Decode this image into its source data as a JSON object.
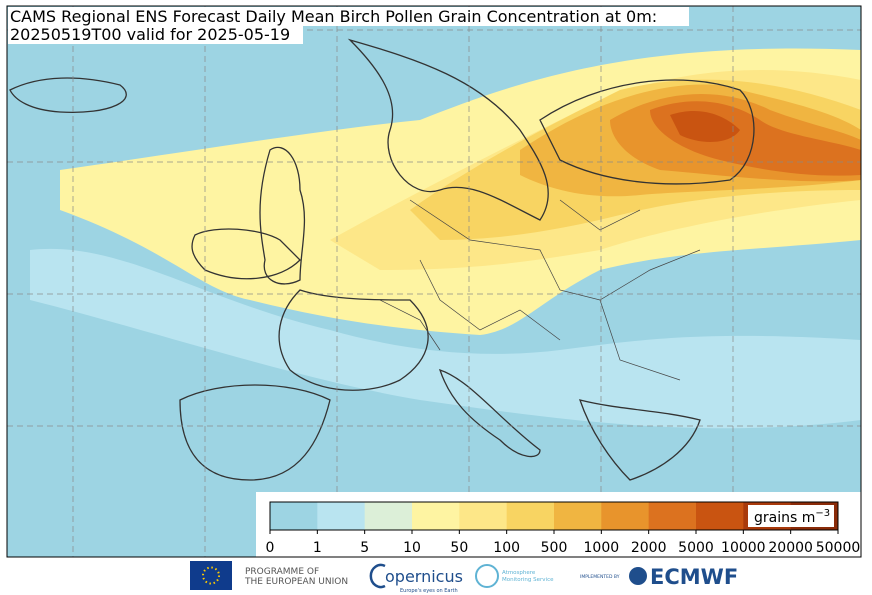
{
  "header": {
    "title": "CAMS Regional ENS Forecast Daily Mean Birch Pollen Grain Concentration at 0m:",
    "subtitle": "20250519T00 valid for 2025-05-19"
  },
  "colorbar": {
    "ticks": [
      0,
      1,
      5,
      10,
      50,
      100,
      500,
      1000,
      2000,
      5000,
      10000,
      20000,
      50000
    ],
    "colors": [
      "#9dd4e3",
      "#b9e4f0",
      "#dcefd8",
      "#fef4a2",
      "#fde788",
      "#f8d462",
      "#f0b541",
      "#e8942c",
      "#dc721f",
      "#c95411",
      "#a93a0b",
      "#8a2b09"
    ],
    "unit": "grains m",
    "unit_exponent": "−3"
  },
  "footer": {
    "eu_line1": "PROGRAMME OF",
    "eu_line2": "THE EUROPEAN UNION",
    "copernicus": "opernicus",
    "copernicus_tagline": "Europe's eyes on Earth",
    "atmosphere_line1": "Atmosphere",
    "atmosphere_line2": "Monitoring Service",
    "implemented": "IMPLEMENTED BY",
    "ecmwf": "ECMWF"
  }
}
